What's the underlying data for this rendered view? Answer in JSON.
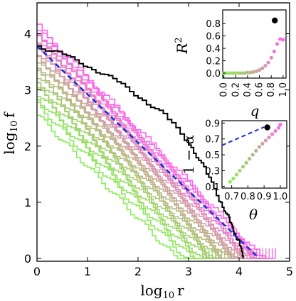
{
  "chart_data": [
    {
      "id": "main",
      "type": "line",
      "xlabel_base": "log",
      "xlabel_sub": "10",
      "xlabel_var": "r",
      "ylabel_base": "log",
      "ylabel_sub": "10",
      "ylabel_var": "f",
      "xlim": [
        0,
        5
      ],
      "ylim": [
        -0.05,
        4.55
      ],
      "xticks": [
        "0",
        "1",
        "2",
        "3",
        "4",
        "5"
      ],
      "yticks": [
        "0",
        "1",
        "2",
        "3",
        "4"
      ],
      "grid": false,
      "legend": "none",
      "family": {
        "count": 24,
        "color_start": "#88ee55",
        "color_mid": "#c3b08e",
        "color_end": "#ff66ee",
        "intercept_start": 2.55,
        "intercept_end": 4.12,
        "tail_end_start": 3.28,
        "tail_end_end": 4.72,
        "slope": -0.93,
        "description_of_encoding": ""
      },
      "highlight_series": {
        "color": "#000000",
        "points": [
          [
            0.0,
            3.78
          ],
          [
            0.5,
            3.62
          ],
          [
            1.0,
            3.42
          ],
          [
            1.5,
            3.18
          ],
          [
            2.0,
            2.88
          ],
          [
            2.5,
            2.55
          ],
          [
            3.0,
            2.05
          ],
          [
            3.3,
            1.6
          ],
          [
            3.6,
            1.05
          ],
          [
            3.8,
            0.7
          ],
          [
            3.9,
            0.45
          ],
          [
            4.0,
            0.3
          ],
          [
            4.08,
            0.0
          ]
        ]
      },
      "fit_line": {
        "style": "dashed",
        "color": "#1f2fd6",
        "points": [
          [
            0.0,
            3.78
          ],
          [
            4.4,
            0.0
          ]
        ]
      }
    },
    {
      "id": "inset_top",
      "type": "scatter",
      "ylabel": "R",
      "ylabel_sup": "2",
      "xlabel": "q",
      "xlim": [
        -0.02,
        1.05
      ],
      "ylim": [
        -0.08,
        1.02
      ],
      "xticks": [
        "0.0",
        "0.2",
        "0.4",
        "0.6",
        "0.8",
        "1.0"
      ],
      "xtick_values": [
        0.0,
        0.2,
        0.4,
        0.6,
        0.8,
        1.0
      ],
      "yticks": [
        "0.0",
        "0.2",
        "0.4",
        "0.6",
        "0.8"
      ],
      "ytick_values": [
        0.0,
        0.2,
        0.4,
        0.6,
        0.8
      ],
      "highlight": {
        "x": 0.86,
        "y": 0.85,
        "color": "#000000"
      },
      "points": [
        [
          0.0,
          0.0
        ],
        [
          0.05,
          0.0
        ],
        [
          0.1,
          0.0
        ],
        [
          0.15,
          0.0
        ],
        [
          0.2,
          0.0
        ],
        [
          0.25,
          0.0
        ],
        [
          0.3,
          0.0
        ],
        [
          0.35,
          0.0
        ],
        [
          0.4,
          0.01
        ],
        [
          0.45,
          0.01
        ],
        [
          0.5,
          0.02
        ],
        [
          0.55,
          0.03
        ],
        [
          0.6,
          0.05
        ],
        [
          0.65,
          0.08
        ],
        [
          0.7,
          0.12
        ],
        [
          0.75,
          0.17
        ],
        [
          0.8,
          0.25
        ],
        [
          0.85,
          0.35
        ],
        [
          0.9,
          0.47
        ],
        [
          0.95,
          0.55
        ],
        [
          1.0,
          0.54
        ]
      ]
    },
    {
      "id": "inset_bottom",
      "type": "scatter",
      "ylabel": "1 − α",
      "xlabel": "θ",
      "xlim": [
        0.64,
        1.04
      ],
      "ylim": [
        0.08,
        0.93
      ],
      "xticks": [
        "0.7",
        "0.8",
        "0.9",
        "1.0"
      ],
      "xtick_values": [
        0.7,
        0.8,
        0.9,
        1.0
      ],
      "yticks": [
        "0.1",
        "0.3",
        "0.5",
        "0.7",
        "0.9"
      ],
      "ytick_values": [
        0.1,
        0.3,
        0.5,
        0.7,
        0.9
      ],
      "highlight": {
        "x": 0.92,
        "y": 0.845,
        "color": "#000000"
      },
      "fit_line": {
        "style": "dashed",
        "color": "#1f2fd6",
        "points": [
          [
            0.64,
            0.62
          ],
          [
            0.9,
            0.85
          ]
        ]
      },
      "points": [
        [
          0.69,
          0.16
        ],
        [
          0.71,
          0.2
        ],
        [
          0.73,
          0.25
        ],
        [
          0.75,
          0.3
        ],
        [
          0.77,
          0.35
        ],
        [
          0.79,
          0.4
        ],
        [
          0.81,
          0.45
        ],
        [
          0.83,
          0.5
        ],
        [
          0.85,
          0.55
        ],
        [
          0.87,
          0.6
        ],
        [
          0.89,
          0.64
        ],
        [
          0.91,
          0.68
        ],
        [
          0.93,
          0.72
        ],
        [
          0.95,
          0.76
        ],
        [
          0.97,
          0.8
        ],
        [
          0.99,
          0.84
        ],
        [
          1.0,
          0.88
        ]
      ]
    }
  ]
}
